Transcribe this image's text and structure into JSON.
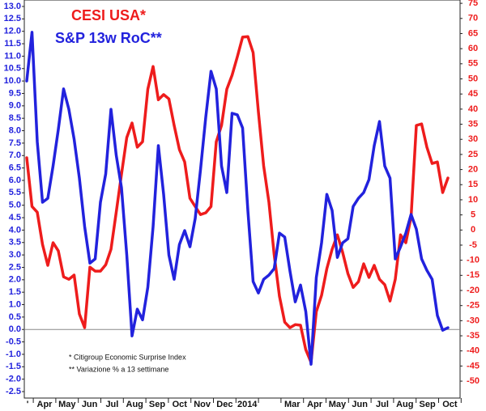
{
  "chart_data": {
    "type": "line",
    "title": "CESI USA*",
    "subtitle": "S&P 13w RoC**",
    "annotations": [
      "* Citigroup Economic Surprise Index",
      "** Variazione % a 13 settimane"
    ],
    "month_labels": [
      "'",
      "Apr",
      "May",
      "Jun",
      "Jul",
      "Aug",
      "Sep",
      "Oct",
      "Nov",
      "Dec",
      "2014",
      null,
      "Mar",
      "Apr",
      "May",
      "Jun",
      "Jul",
      "Aug",
      "Sep",
      "Oct"
    ],
    "ylim": [
      -2.76,
      13.26
    ],
    "yticks": [
      {
        "value": 13,
        "label": "13.0"
      },
      12.5,
      {
        "value": 12,
        "label": "12.0"
      },
      11.5,
      {
        "value": 11,
        "label": "11.0"
      },
      10.5,
      {
        "value": 10,
        "label": "10.0"
      },
      9.5,
      {
        "value": 9,
        "label": "9.0"
      },
      8.5,
      {
        "value": 8,
        "label": "8.0"
      },
      7.5,
      {
        "value": 7,
        "label": "7.0"
      },
      6.5,
      {
        "value": 6,
        "label": "6.0"
      },
      5.5,
      {
        "value": 5,
        "label": "5.0"
      },
      4.5,
      {
        "value": 4,
        "label": "4.0"
      },
      3.5,
      {
        "value": 3,
        "label": "3.0"
      },
      2.5,
      {
        "value": 2,
        "label": "2.0"
      },
      1.5,
      {
        "value": 1,
        "label": "1.0"
      },
      0.5,
      {
        "value": 0,
        "label": "0.0"
      },
      -0.5,
      {
        "value": -1,
        "label": "-1.0"
      },
      -1.5,
      {
        "value": -2,
        "label": "-2.0"
      },
      -2.5
    ],
    "y2lim": [
      -55.6,
      76.1
    ],
    "y2ticks": [
      75,
      70,
      65,
      60,
      55,
      50,
      45,
      40,
      35,
      30,
      25,
      20,
      15,
      10,
      5,
      0,
      -5,
      -10,
      -15,
      -20,
      -25,
      -30,
      -35,
      -40,
      -45,
      -50
    ],
    "series": [
      {
        "name": "S&P 13w RoC**",
        "color": "#2222dd",
        "axis": "y",
        "values": [
          10.0,
          11.96,
          7.56,
          5.12,
          5.28,
          6.58,
          8.05,
          9.68,
          8.86,
          7.66,
          6.09,
          4.14,
          2.67,
          2.84,
          5.12,
          6.26,
          8.86,
          7.01,
          5.7,
          3.0,
          -0.26,
          0.82,
          0.39,
          1.7,
          4.14,
          7.4,
          5.44,
          3.0,
          2.02,
          3.42,
          3.98,
          3.33,
          4.47,
          6.42,
          8.54,
          10.39,
          9.68,
          6.58,
          5.51,
          8.7,
          8.64,
          8.11,
          4.79,
          1.93,
          1.47,
          2.02,
          2.19,
          2.45,
          3.88,
          3.72,
          2.35,
          1.11,
          1.79,
          0.72,
          -1.4,
          2.09,
          3.49,
          5.44,
          4.79,
          2.9,
          3.49,
          3.65,
          4.95,
          5.28,
          5.51,
          6.03,
          7.4,
          8.37,
          6.58,
          6.09,
          2.84,
          3.33,
          3.88,
          4.63,
          4.04,
          2.84,
          2.38,
          2.02,
          0.56,
          -0.03,
          0.07
        ]
      },
      {
        "name": "CESI USA*",
        "color": "#ee1c1c",
        "axis": "y2",
        "values": [
          23.9,
          7.8,
          5.9,
          -4.8,
          -11.7,
          -4.2,
          -6.9,
          -15.5,
          -16.3,
          -14.9,
          -27.8,
          -32.3,
          -12.3,
          -13.6,
          -13.6,
          -11.5,
          -6.4,
          5.9,
          18.5,
          30.6,
          35.4,
          27.4,
          29.2,
          46.6,
          54.1,
          43.1,
          44.8,
          43.4,
          34.6,
          26.6,
          22.5,
          10.5,
          7.8,
          5.1,
          5.7,
          7.8,
          29.2,
          34.6,
          46.6,
          51.2,
          57.3,
          63.8,
          64.0,
          58.7,
          39.1,
          21.2,
          9.2,
          -8.2,
          -21.9,
          -30.5,
          -32.3,
          -31.3,
          -31.5,
          -39.6,
          -43.8,
          -27.0,
          -21.6,
          -12.8,
          -6.4,
          -1.6,
          -7.4,
          -14.4,
          -19.0,
          -17.1,
          -11.2,
          -15.7,
          -11.7,
          -16.3,
          -18.1,
          -23.5,
          -16.3,
          -1.6,
          -4.2,
          4.3,
          34.6,
          35.1,
          27.4,
          22.0,
          22.5,
          12.4,
          17.2
        ]
      }
    ]
  }
}
